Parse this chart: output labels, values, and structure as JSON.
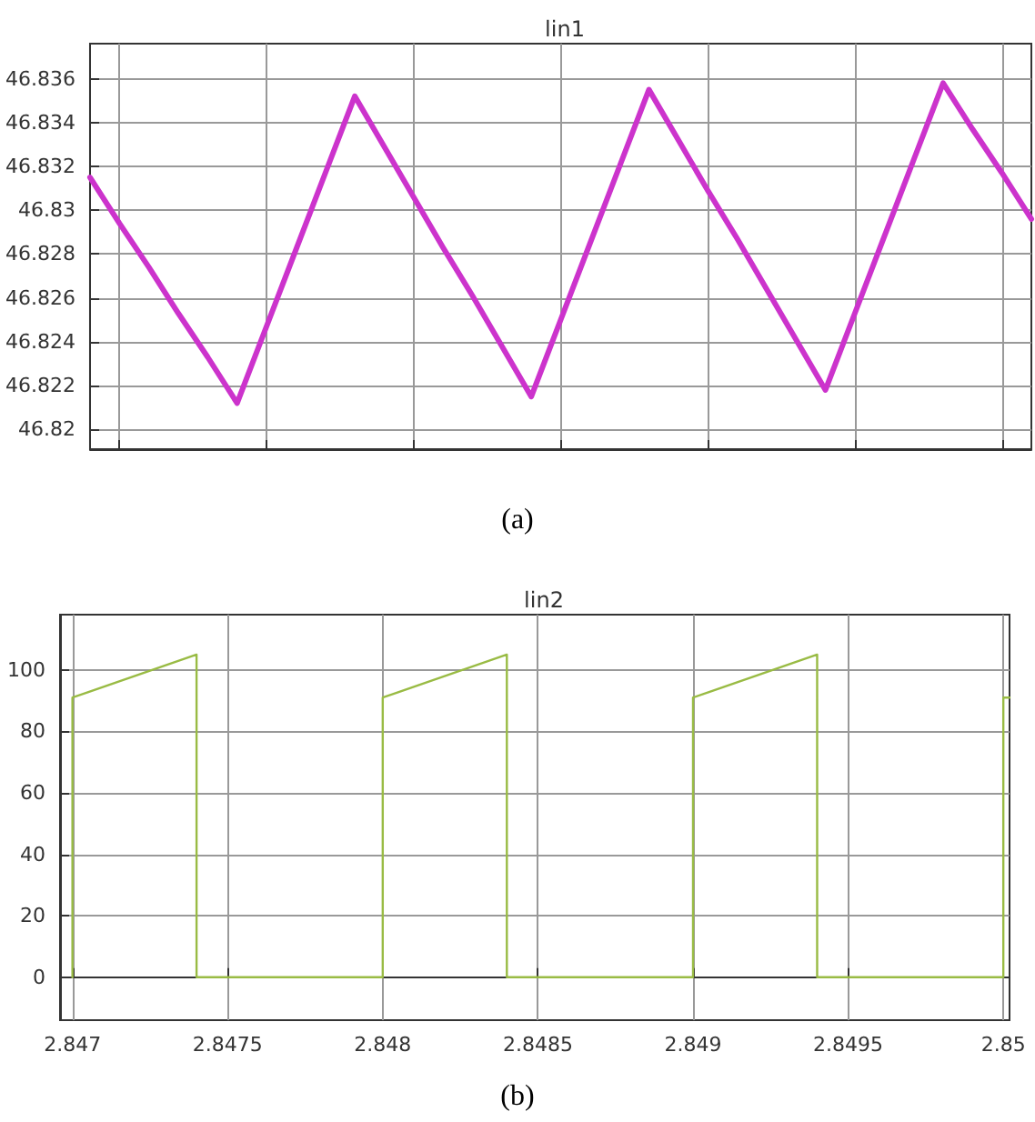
{
  "chart_data": [
    {
      "type": "line",
      "title": "lin1",
      "annotations": [
        "(a)"
      ],
      "categories": [
        null,
        null,
        null,
        null,
        null,
        null,
        null,
        null,
        null,
        null,
        null,
        null,
        null,
        null,
        null,
        null,
        null,
        null,
        null,
        null,
        null,
        null,
        null,
        null,
        null,
        null,
        null,
        null,
        null,
        null,
        null,
        null,
        null
      ],
      "ylim": [
        46.8191,
        46.8376
      ],
      "yticks": [
        46.82,
        46.822,
        46.824,
        46.826,
        46.828,
        46.83,
        46.832,
        46.834,
        46.836
      ],
      "tick_labels": "y",
      "grid": true,
      "line_style": "solid",
      "series": [
        {
          "color": "#cc33cc",
          "values": [
            46.8315,
            46.8294,
            46.8274,
            46.8253,
            46.8233,
            46.8212,
            46.8247,
            46.8282,
            46.8317,
            46.8352,
            46.8329,
            46.8306,
            46.8283,
            46.8261,
            46.8238,
            46.8215,
            46.825,
            46.8285,
            46.832,
            46.8355,
            46.8332,
            46.8309,
            46.8287,
            46.8264,
            46.8241,
            46.8218,
            46.8253,
            46.8288,
            46.8323,
            46.8358,
            46.8337,
            46.8317,
            46.8296
          ]
        }
      ]
    },
    {
      "type": "line",
      "title": "lin2",
      "annotations": [
        "(b)"
      ],
      "xlim": [
        2.84696,
        2.85002
      ],
      "xticks": [
        2.847,
        2.8475,
        2.848,
        2.8485,
        2.849,
        2.8495,
        2.85
      ],
      "ylim": [
        -14,
        118
      ],
      "yticks": [
        0,
        20,
        40,
        60,
        80,
        100
      ],
      "grid": true,
      "line_style": "solid",
      "series": [
        {
          "color": "#99bb44",
          "x": [
            2.847,
            2.847,
            2.8474,
            2.8474,
            2.848,
            2.848,
            2.8484,
            2.8484,
            2.849,
            2.849,
            2.8494,
            2.8494,
            2.85,
            2.85,
            2.85002
          ],
          "values": [
            0,
            91,
            105,
            0,
            0,
            91,
            105,
            0,
            0,
            91,
            105,
            0,
            0,
            91,
            91
          ]
        }
      ]
    }
  ]
}
